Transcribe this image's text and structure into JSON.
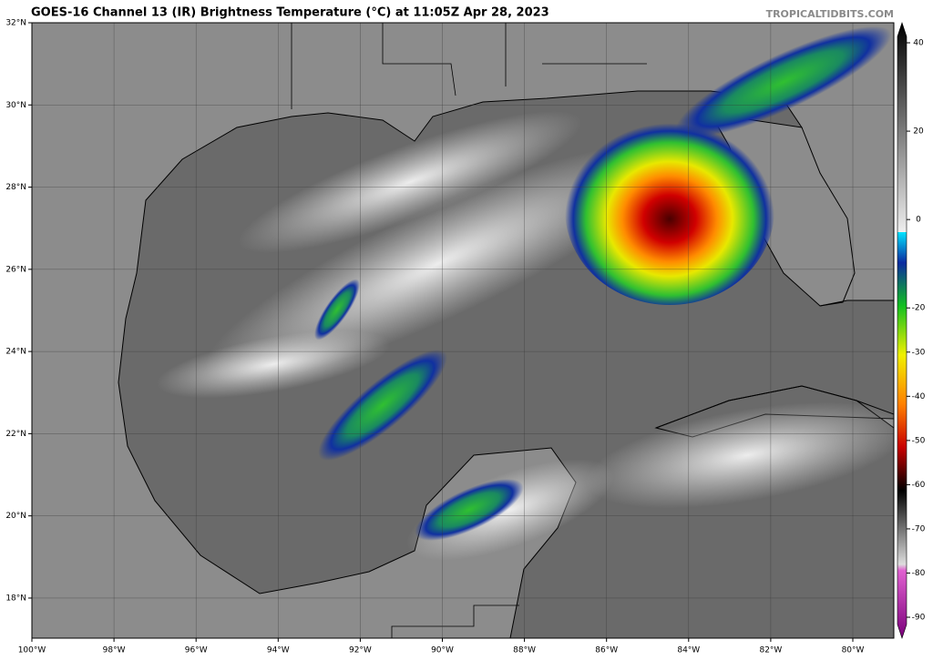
{
  "map": {
    "title": "GOES-16 Channel 13 (IR) Brightness Temperature (°C) at 11:05Z Apr 28, 2023",
    "credit": "TROPICALTIDBITS.COM",
    "lat_ticks": [
      {
        "value": 32,
        "label": "32°N"
      },
      {
        "value": 30,
        "label": "30°N"
      },
      {
        "value": 28,
        "label": "28°N"
      },
      {
        "value": 26,
        "label": "26°N"
      },
      {
        "value": 24,
        "label": "24°N"
      },
      {
        "value": 22,
        "label": "22°N"
      },
      {
        "value": 20,
        "label": "20°N"
      },
      {
        "value": 18,
        "label": "18°N"
      }
    ],
    "lon_ticks": [
      {
        "value": -100,
        "label": "100°W"
      },
      {
        "value": -98,
        "label": "98°W"
      },
      {
        "value": -96,
        "label": "96°W"
      },
      {
        "value": -94,
        "label": "94°W"
      },
      {
        "value": -92,
        "label": "92°W"
      },
      {
        "value": -90,
        "label": "90°W"
      },
      {
        "value": -88,
        "label": "88°W"
      },
      {
        "value": -86,
        "label": "86°W"
      },
      {
        "value": -84,
        "label": "84°W"
      },
      {
        "value": -82,
        "label": "82°W"
      },
      {
        "value": -80,
        "label": "80°W"
      }
    ],
    "colorbar_ticks": [
      40,
      20,
      0,
      -20,
      -30,
      -40,
      -50,
      -60,
      -70,
      -80,
      -90
    ]
  }
}
